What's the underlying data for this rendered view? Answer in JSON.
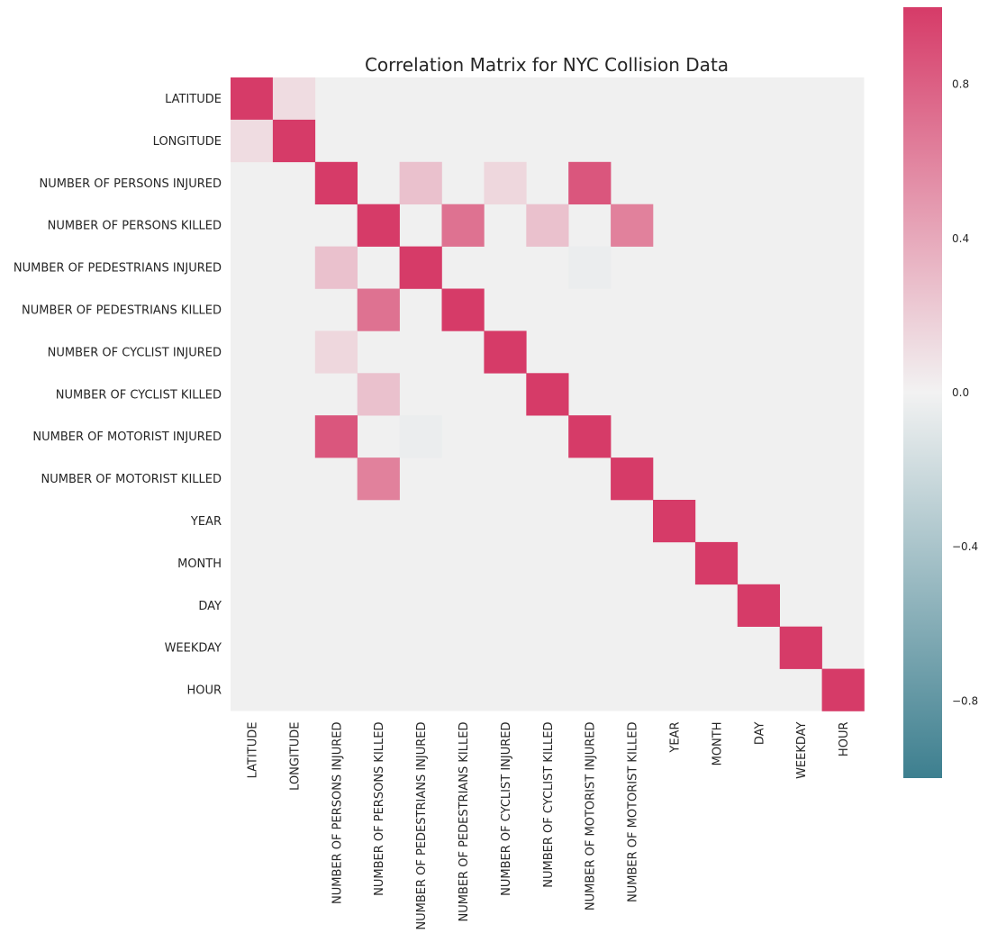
{
  "chart_data": {
    "type": "heatmap",
    "title": "Correlation Matrix for NYC Collision Data",
    "labels": [
      "LATITUDE",
      "LONGITUDE",
      "NUMBER OF PERSONS INJURED",
      "NUMBER OF PERSONS KILLED",
      "NUMBER OF PEDESTRIANS INJURED",
      "NUMBER OF PEDESTRIANS KILLED",
      "NUMBER OF CYCLIST INJURED",
      "NUMBER OF CYCLIST KILLED",
      "NUMBER OF MOTORIST INJURED",
      "NUMBER OF MOTORIST KILLED",
      "YEAR",
      "MONTH",
      "DAY",
      "WEEKDAY",
      "HOUR"
    ],
    "matrix": [
      [
        1.0,
        0.12,
        0,
        0,
        0,
        0,
        0,
        0,
        0,
        0,
        0,
        0,
        0,
        0,
        0
      ],
      [
        0.12,
        1.0,
        0,
        0,
        0,
        0,
        0,
        0,
        0,
        0,
        0,
        0,
        0,
        0,
        0
      ],
      [
        0,
        0,
        1.0,
        0,
        0.27,
        0,
        0.15,
        0,
        0.85,
        0,
        0,
        0,
        0,
        0,
        0
      ],
      [
        0,
        0,
        0,
        1.0,
        0,
        0.7,
        0,
        0.27,
        0,
        0.62,
        0,
        0,
        0,
        0,
        0
      ],
      [
        0,
        0,
        0.27,
        0,
        1.0,
        0,
        0,
        0,
        -0.04,
        0,
        0,
        0,
        0,
        0,
        0
      ],
      [
        0,
        0,
        0,
        0.7,
        0,
        1.0,
        0,
        0,
        0,
        0,
        0,
        0,
        0,
        0,
        0
      ],
      [
        0,
        0,
        0.15,
        0,
        0,
        0,
        1.0,
        0,
        0,
        0,
        0,
        0,
        0,
        0,
        0
      ],
      [
        0,
        0,
        0,
        0.27,
        0,
        0,
        0,
        1.0,
        0,
        0,
        0,
        0,
        0,
        0,
        0
      ],
      [
        0,
        0,
        0.85,
        0,
        -0.04,
        0,
        0,
        0,
        1.0,
        0,
        0,
        0,
        0,
        0,
        0
      ],
      [
        0,
        0,
        0,
        0.62,
        0,
        0,
        0,
        0,
        0,
        1.0,
        0,
        0,
        0,
        0,
        0
      ],
      [
        0,
        0,
        0,
        0,
        0,
        0,
        0,
        0,
        0,
        0,
        1.0,
        0,
        0,
        0,
        0
      ],
      [
        0,
        0,
        0,
        0,
        0,
        0,
        0,
        0,
        0,
        0,
        0,
        1.0,
        0,
        0,
        0
      ],
      [
        0,
        0,
        0,
        0,
        0,
        0,
        0,
        0,
        0,
        0,
        0,
        0,
        1.0,
        0,
        0
      ],
      [
        0,
        0,
        0,
        0,
        0,
        0,
        0,
        0,
        0,
        0,
        0,
        0,
        0,
        1.0,
        0
      ],
      [
        0,
        0,
        0,
        0,
        0,
        0,
        0,
        0,
        0,
        0,
        0,
        0,
        0,
        0,
        1.0
      ]
    ],
    "colorbar": {
      "range": [
        -1.0,
        1.0
      ],
      "ticks": [
        -0.8,
        -0.4,
        0.0,
        0.4,
        0.8
      ],
      "tick_labels": [
        "−0.8",
        "−0.4",
        "0.0",
        "0.4",
        "0.8"
      ],
      "colors": {
        "low": "#3d7f8f",
        "mid": "#f2f2f2",
        "high": "#d63b68"
      },
      "placement": "right"
    },
    "grid": false,
    "background_color": "#f0f0f0"
  }
}
